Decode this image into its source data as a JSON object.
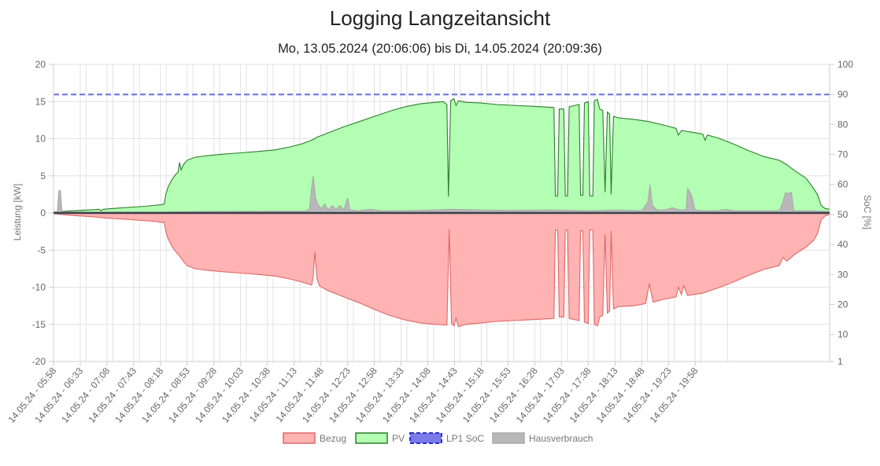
{
  "chart_data": {
    "type": "area",
    "title": "Logging Langzeitansicht",
    "subtitle": "Mo, 13.05.2024 (20:06:06) bis Di, 14.05.2024 (20:09:36)",
    "ylabel": "Leistung [kW]",
    "y2label": "SoC [%]",
    "ylim": [
      -20,
      20
    ],
    "y2lim": [
      1,
      100
    ],
    "y_ticks": [
      "20",
      "15",
      "10",
      "5",
      "0",
      "-5",
      "-10",
      "-15",
      "-20"
    ],
    "y2_ticks": [
      "100",
      "90",
      "80",
      "70",
      "60",
      "50",
      "40",
      "30",
      "20",
      "10",
      "1"
    ],
    "x_tick_labels": [
      "14.05.24 - 05:58",
      "14.05.24 - 06:33",
      "14.05.24 - 07:08",
      "14.05.24 - 07:43",
      "14.05.24 - 08:18",
      "14.05.24 - 08:53",
      "14.05.24 - 09:28",
      "14.05.24 - 10:03",
      "14.05.24 - 10:38",
      "14.05.24 - 11:13",
      "14.05.24 - 11:48",
      "14.05.24 - 12:23",
      "14.05.24 - 12:58",
      "14.05.24 - 13:33",
      "14.05.24 - 14:08",
      "14.05.24 - 14:43",
      "14.05.24 - 15:18",
      "14.05.24 - 15:53",
      "14.05.24 - 16:28",
      "14.05.24 - 17:03",
      "14.05.24 - 17:38",
      "14.05.24 - 18:13",
      "14.05.24 - 18:48",
      "14.05.24 - 19:23",
      "14.05.24 - 19:58"
    ],
    "x_unit": "minutes since 05:58",
    "grid": true,
    "legend_position": "bottom",
    "series": [
      {
        "name": "Bezug",
        "color": "#e06666",
        "fill": "#ffb3b3",
        "points": [
          [
            0,
            -0.1
          ],
          [
            2,
            -0.1
          ],
          [
            10,
            -0.2
          ],
          [
            20,
            -0.3
          ],
          [
            35,
            -0.4
          ],
          [
            50,
            -0.5
          ],
          [
            70,
            -0.7
          ],
          [
            100,
            -0.9
          ],
          [
            130,
            -1.1
          ],
          [
            145,
            -1.3
          ],
          [
            147,
            -2.5
          ],
          [
            150,
            -3.5
          ],
          [
            155,
            -4.5
          ],
          [
            160,
            -5.2
          ],
          [
            165,
            -5.8
          ],
          [
            170,
            -6.5
          ],
          [
            175,
            -7.1
          ],
          [
            185,
            -7.5
          ],
          [
            200,
            -7.7
          ],
          [
            220,
            -7.9
          ],
          [
            245,
            -8.1
          ],
          [
            270,
            -8.3
          ],
          [
            290,
            -8.5
          ],
          [
            310,
            -8.9
          ],
          [
            325,
            -9.3
          ],
          [
            338,
            -9.7
          ],
          [
            340,
            -8.5
          ],
          [
            342,
            -5.3
          ],
          [
            345,
            -8.9
          ],
          [
            348,
            -9.8
          ],
          [
            360,
            -10.5
          ],
          [
            380,
            -11.3
          ],
          [
            400,
            -12.1
          ],
          [
            420,
            -13.0
          ],
          [
            440,
            -13.8
          ],
          [
            460,
            -14.4
          ],
          [
            480,
            -14.8
          ],
          [
            500,
            -15.0
          ],
          [
            515,
            -15.1
          ],
          [
            518,
            -2.2
          ],
          [
            521,
            -14.9
          ],
          [
            524,
            -15.2
          ],
          [
            527,
            -14.2
          ],
          [
            530,
            -15.3
          ],
          [
            540,
            -15.0
          ],
          [
            560,
            -14.8
          ],
          [
            580,
            -14.6
          ],
          [
            600,
            -14.5
          ],
          [
            620,
            -14.4
          ],
          [
            640,
            -14.3
          ],
          [
            655,
            -14.2
          ],
          [
            657,
            -2.3
          ],
          [
            660,
            -2.3
          ],
          [
            662,
            -14.0
          ],
          [
            668,
            -14.0
          ],
          [
            670,
            -2.3
          ],
          [
            673,
            -2.3
          ],
          [
            675,
            -14.2
          ],
          [
            688,
            -14.5
          ],
          [
            690,
            -2.4
          ],
          [
            693,
            -2.4
          ],
          [
            695,
            -14.7
          ],
          [
            700,
            -14.9
          ],
          [
            702,
            -2.3
          ],
          [
            706,
            -2.3
          ],
          [
            708,
            -15.0
          ],
          [
            712,
            -15.2
          ],
          [
            715,
            -14.0
          ],
          [
            719,
            -13.8
          ],
          [
            722,
            -2.8
          ],
          [
            725,
            -13.5
          ],
          [
            728,
            -13.2
          ],
          [
            730,
            -2.4
          ],
          [
            733,
            -12.9
          ],
          [
            740,
            -12.6
          ],
          [
            760,
            -12.5
          ],
          [
            775,
            -12.2
          ],
          [
            780,
            -9.5
          ],
          [
            785,
            -12.0
          ],
          [
            800,
            -11.6
          ],
          [
            815,
            -11.3
          ],
          [
            818,
            -10.0
          ],
          [
            822,
            -11.0
          ],
          [
            825,
            -9.8
          ],
          [
            830,
            -11.1
          ],
          [
            850,
            -10.8
          ],
          [
            870,
            -10.1
          ],
          [
            890,
            -9.3
          ],
          [
            910,
            -8.4
          ],
          [
            930,
            -7.6
          ],
          [
            950,
            -7.1
          ],
          [
            955,
            -6.0
          ],
          [
            960,
            -6.5
          ],
          [
            970,
            -5.6
          ],
          [
            985,
            -4.6
          ],
          [
            995,
            -3.7
          ],
          [
            1000,
            -2.8
          ],
          [
            1005,
            -0.9
          ],
          [
            1010,
            -0.4
          ],
          [
            1016,
            -0.2
          ]
        ]
      },
      {
        "name": "PV",
        "color": "#2e7d2e",
        "fill": "#b3ffb3",
        "points": [
          [
            0,
            0.1
          ],
          [
            10,
            0.2
          ],
          [
            25,
            0.3
          ],
          [
            45,
            0.4
          ],
          [
            60,
            0.5
          ],
          [
            62,
            0.3
          ],
          [
            65,
            0.5
          ],
          [
            90,
            0.7
          ],
          [
            120,
            0.9
          ],
          [
            140,
            1.1
          ],
          [
            145,
            1.2
          ],
          [
            147,
            2.5
          ],
          [
            150,
            3.5
          ],
          [
            155,
            4.5
          ],
          [
            160,
            5.2
          ],
          [
            163,
            5.5
          ],
          [
            165,
            6.8
          ],
          [
            167,
            5.8
          ],
          [
            170,
            6.5
          ],
          [
            175,
            7.1
          ],
          [
            185,
            7.5
          ],
          [
            200,
            7.7
          ],
          [
            220,
            7.9
          ],
          [
            245,
            8.1
          ],
          [
            270,
            8.3
          ],
          [
            290,
            8.5
          ],
          [
            310,
            8.9
          ],
          [
            325,
            9.3
          ],
          [
            338,
            9.8
          ],
          [
            345,
            10.2
          ],
          [
            360,
            10.8
          ],
          [
            380,
            11.6
          ],
          [
            400,
            12.3
          ],
          [
            420,
            13.0
          ],
          [
            440,
            13.7
          ],
          [
            460,
            14.3
          ],
          [
            480,
            14.7
          ],
          [
            500,
            14.9
          ],
          [
            510,
            15.0
          ],
          [
            515,
            14.6
          ],
          [
            517,
            2.2
          ],
          [
            520,
            15.1
          ],
          [
            524,
            15.4
          ],
          [
            527,
            14.5
          ],
          [
            530,
            15.1
          ],
          [
            540,
            14.9
          ],
          [
            560,
            14.8
          ],
          [
            580,
            14.6
          ],
          [
            600,
            14.5
          ],
          [
            620,
            14.4
          ],
          [
            640,
            14.3
          ],
          [
            655,
            14.2
          ],
          [
            657,
            2.3
          ],
          [
            660,
            2.3
          ],
          [
            662,
            14.0
          ],
          [
            668,
            14.0
          ],
          [
            670,
            2.3
          ],
          [
            673,
            2.3
          ],
          [
            675,
            14.3
          ],
          [
            688,
            14.6
          ],
          [
            690,
            2.4
          ],
          [
            693,
            2.4
          ],
          [
            695,
            14.8
          ],
          [
            700,
            15.0
          ],
          [
            702,
            2.3
          ],
          [
            706,
            2.3
          ],
          [
            708,
            15.1
          ],
          [
            712,
            15.3
          ],
          [
            715,
            14.0
          ],
          [
            719,
            13.8
          ],
          [
            722,
            2.8
          ],
          [
            725,
            13.6
          ],
          [
            728,
            13.3
          ],
          [
            730,
            2.5
          ],
          [
            733,
            13.0
          ],
          [
            740,
            12.8
          ],
          [
            760,
            12.6
          ],
          [
            780,
            12.3
          ],
          [
            800,
            11.8
          ],
          [
            815,
            11.4
          ],
          [
            818,
            10.5
          ],
          [
            822,
            11.1
          ],
          [
            840,
            10.8
          ],
          [
            850,
            10.6
          ],
          [
            853,
            9.8
          ],
          [
            856,
            10.5
          ],
          [
            870,
            10.1
          ],
          [
            890,
            9.3
          ],
          [
            910,
            8.4
          ],
          [
            930,
            7.6
          ],
          [
            950,
            7.1
          ],
          [
            960,
            6.5
          ],
          [
            970,
            5.7
          ],
          [
            985,
            4.7
          ],
          [
            995,
            3.3
          ],
          [
            1000,
            2.5
          ],
          [
            1005,
            1.0
          ],
          [
            1010,
            0.6
          ],
          [
            1016,
            0.5
          ]
        ]
      },
      {
        "name": "LP1 SoC",
        "color": "#6b6be6",
        "axis": "y2",
        "points": [
          [
            0,
            90
          ],
          [
            1016,
            90
          ]
        ]
      },
      {
        "name": "Hausverbrauch",
        "color": "#aaaaaa",
        "fill": "#b8b8b8",
        "points": [
          [
            0,
            0.1
          ],
          [
            5,
            0.15
          ],
          [
            7,
            3.0
          ],
          [
            9,
            3.0
          ],
          [
            11,
            0.15
          ],
          [
            50,
            0.12
          ],
          [
            140,
            0.12
          ],
          [
            200,
            0.2
          ],
          [
            330,
            0.25
          ],
          [
            335,
            0.5
          ],
          [
            338,
            3.5
          ],
          [
            340,
            5.0
          ],
          [
            343,
            2.0
          ],
          [
            346,
            1.2
          ],
          [
            350,
            0.6
          ],
          [
            355,
            1.2
          ],
          [
            360,
            0.4
          ],
          [
            365,
            1.0
          ],
          [
            370,
            0.5
          ],
          [
            375,
            1.0
          ],
          [
            380,
            0.4
          ],
          [
            385,
            2.0
          ],
          [
            388,
            0.4
          ],
          [
            400,
            0.3
          ],
          [
            415,
            0.5
          ],
          [
            430,
            0.3
          ],
          [
            450,
            0.3
          ],
          [
            500,
            0.4
          ],
          [
            520,
            0.5
          ],
          [
            560,
            0.4
          ],
          [
            600,
            0.35
          ],
          [
            650,
            0.4
          ],
          [
            700,
            0.3
          ],
          [
            740,
            0.4
          ],
          [
            770,
            0.3
          ],
          [
            778,
            1.5
          ],
          [
            781,
            3.8
          ],
          [
            784,
            1.0
          ],
          [
            790,
            0.4
          ],
          [
            800,
            0.4
          ],
          [
            810,
            0.7
          ],
          [
            820,
            0.4
          ],
          [
            828,
            0.4
          ],
          [
            830,
            3.3
          ],
          [
            835,
            2.5
          ],
          [
            840,
            0.4
          ],
          [
            850,
            0.3
          ],
          [
            870,
            0.3
          ],
          [
            880,
            0.5
          ],
          [
            890,
            0.3
          ],
          [
            920,
            0.3
          ],
          [
            950,
            0.3
          ],
          [
            955,
            1.5
          ],
          [
            958,
            2.7
          ],
          [
            962,
            2.6
          ],
          [
            966,
            2.8
          ],
          [
            969,
            0.3
          ],
          [
            990,
            0.3
          ],
          [
            1016,
            0.2
          ]
        ]
      }
    ]
  }
}
